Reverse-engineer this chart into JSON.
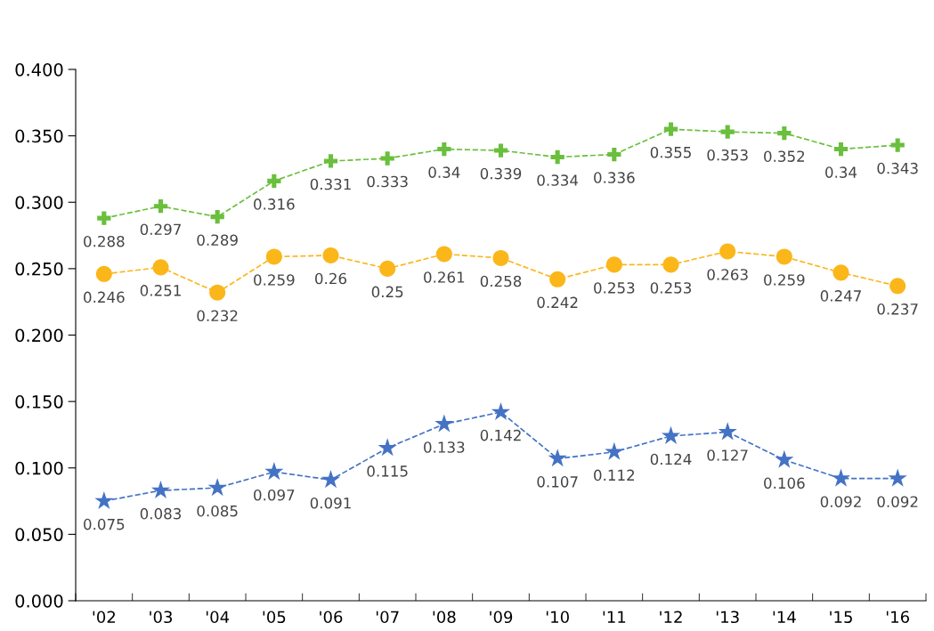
{
  "chart_data": {
    "type": "line",
    "categories": [
      "'02",
      "'03",
      "'04",
      "'05",
      "'06",
      "'07",
      "'08",
      "'09",
      "'10",
      "'11",
      "'12",
      "'13",
      "'14",
      "'15",
      "'16"
    ],
    "series": [
      {
        "color": "#6abf3c",
        "marker": "cross",
        "values": [
          0.288,
          0.297,
          0.289,
          0.316,
          0.331,
          0.333,
          0.34,
          0.339,
          0.334,
          0.336,
          0.355,
          0.353,
          0.352,
          0.34,
          0.343
        ]
      },
      {
        "color": "#fbb61a",
        "marker": "circle",
        "values": [
          0.246,
          0.251,
          0.232,
          0.259,
          0.26,
          0.25,
          0.261,
          0.258,
          0.242,
          0.253,
          0.253,
          0.263,
          0.259,
          0.247,
          0.237
        ]
      },
      {
        "color": "#4472c4",
        "marker": "star",
        "values": [
          0.075,
          0.083,
          0.085,
          0.097,
          0.091,
          0.115,
          0.133,
          0.142,
          0.107,
          0.112,
          0.124,
          0.127,
          0.106,
          0.092,
          0.092
        ]
      }
    ],
    "ylim": [
      0,
      0.4
    ],
    "yticks": [
      {
        "value": 0,
        "label": "0.000"
      },
      {
        "value": 0.05,
        "label": "0.050"
      },
      {
        "value": 0.1,
        "label": "0.100"
      },
      {
        "value": 0.15,
        "label": "0.150"
      },
      {
        "value": 0.2,
        "label": "0.200"
      },
      {
        "value": 0.25,
        "label": "0.250"
      },
      {
        "value": 0.3,
        "label": "0.300"
      },
      {
        "value": 0.35,
        "label": "0.350"
      },
      {
        "value": 0.4,
        "label": "0.400"
      }
    ],
    "line_style": "dashed",
    "data_labels": true,
    "grid": false,
    "legend": false
  }
}
